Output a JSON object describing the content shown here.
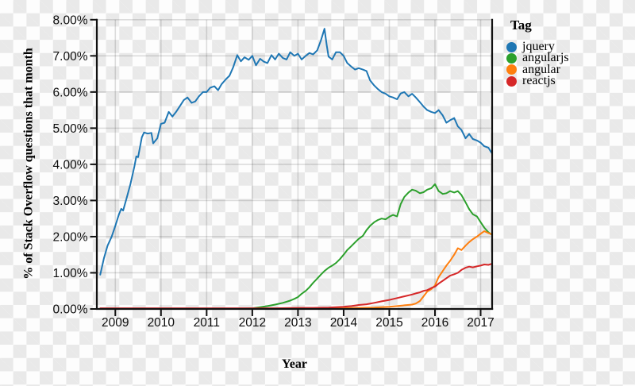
{
  "chart_data": {
    "type": "line",
    "title": "",
    "xlabel": "Year",
    "ylabel": "% of Stack Overflow questions that month",
    "x_domain": [
      2008.67,
      2017.25
    ],
    "y_domain": [
      0,
      8
    ],
    "x_ticks": [
      2009,
      2010,
      2011,
      2012,
      2013,
      2014,
      2015,
      2016,
      2017
    ],
    "y_ticks": [
      {
        "value": 8,
        "label": "8.00%"
      },
      {
        "value": 7,
        "label": "7.00%"
      },
      {
        "value": 6,
        "label": "6.00%"
      },
      {
        "value": 5,
        "label": "5.00%"
      },
      {
        "value": 4,
        "label": "4.00%"
      },
      {
        "value": 3,
        "label": "3.00%"
      },
      {
        "value": 2,
        "label": "2.00%"
      },
      {
        "value": 1,
        "label": "1.00%"
      },
      {
        "value": 0,
        "label": "0.00%"
      }
    ],
    "grid": true,
    "legend": {
      "title": "Tag",
      "position": "right",
      "items": [
        {
          "label": "jquery",
          "color": "#1f77b4"
        },
        {
          "label": "angularjs",
          "color": "#2ca02c"
        },
        {
          "label": "angular",
          "color": "#ff7f0e"
        },
        {
          "label": "reactjs",
          "color": "#d62728"
        }
      ]
    },
    "series": [
      {
        "name": "jquery",
        "color": "#1f77b4",
        "points": [
          [
            2008.67,
            0.95
          ],
          [
            2008.75,
            1.4
          ],
          [
            2008.83,
            1.75
          ],
          [
            2008.92,
            2.0
          ],
          [
            2009.0,
            2.3
          ],
          [
            2009.08,
            2.62
          ],
          [
            2009.13,
            2.77
          ],
          [
            2009.17,
            2.72
          ],
          [
            2009.25,
            3.08
          ],
          [
            2009.33,
            3.45
          ],
          [
            2009.42,
            3.95
          ],
          [
            2009.46,
            4.22
          ],
          [
            2009.5,
            4.2
          ],
          [
            2009.58,
            4.75
          ],
          [
            2009.63,
            4.88
          ],
          [
            2009.71,
            4.85
          ],
          [
            2009.79,
            4.87
          ],
          [
            2009.83,
            4.58
          ],
          [
            2009.92,
            4.72
          ],
          [
            2010.0,
            5.12
          ],
          [
            2010.08,
            5.15
          ],
          [
            2010.17,
            5.45
          ],
          [
            2010.25,
            5.32
          ],
          [
            2010.33,
            5.45
          ],
          [
            2010.42,
            5.62
          ],
          [
            2010.5,
            5.78
          ],
          [
            2010.58,
            5.85
          ],
          [
            2010.67,
            5.7
          ],
          [
            2010.75,
            5.74
          ],
          [
            2010.83,
            5.88
          ],
          [
            2010.92,
            6.0
          ],
          [
            2011.0,
            6.0
          ],
          [
            2011.08,
            6.12
          ],
          [
            2011.17,
            6.16
          ],
          [
            2011.25,
            6.05
          ],
          [
            2011.33,
            6.22
          ],
          [
            2011.42,
            6.35
          ],
          [
            2011.5,
            6.45
          ],
          [
            2011.58,
            6.68
          ],
          [
            2011.67,
            7.02
          ],
          [
            2011.75,
            6.85
          ],
          [
            2011.83,
            6.96
          ],
          [
            2011.92,
            6.89
          ],
          [
            2012.0,
            7.0
          ],
          [
            2012.08,
            6.74
          ],
          [
            2012.17,
            6.92
          ],
          [
            2012.25,
            6.84
          ],
          [
            2012.33,
            6.8
          ],
          [
            2012.42,
            7.02
          ],
          [
            2012.5,
            6.9
          ],
          [
            2012.58,
            7.06
          ],
          [
            2012.67,
            6.94
          ],
          [
            2012.75,
            6.9
          ],
          [
            2012.83,
            7.1
          ],
          [
            2012.92,
            7.0
          ],
          [
            2013.0,
            7.06
          ],
          [
            2013.08,
            6.9
          ],
          [
            2013.17,
            7.0
          ],
          [
            2013.25,
            7.08
          ],
          [
            2013.33,
            7.04
          ],
          [
            2013.42,
            7.15
          ],
          [
            2013.5,
            7.42
          ],
          [
            2013.58,
            7.75
          ],
          [
            2013.63,
            7.3
          ],
          [
            2013.67,
            6.98
          ],
          [
            2013.75,
            6.9
          ],
          [
            2013.83,
            7.1
          ],
          [
            2013.92,
            7.1
          ],
          [
            2014.0,
            7.0
          ],
          [
            2014.08,
            6.8
          ],
          [
            2014.17,
            6.7
          ],
          [
            2014.25,
            6.62
          ],
          [
            2014.33,
            6.66
          ],
          [
            2014.42,
            6.62
          ],
          [
            2014.5,
            6.58
          ],
          [
            2014.58,
            6.32
          ],
          [
            2014.67,
            6.18
          ],
          [
            2014.75,
            6.08
          ],
          [
            2014.83,
            6.0
          ],
          [
            2014.92,
            5.95
          ],
          [
            2015.0,
            5.88
          ],
          [
            2015.08,
            5.85
          ],
          [
            2015.17,
            5.8
          ],
          [
            2015.25,
            5.96
          ],
          [
            2015.33,
            6.0
          ],
          [
            2015.42,
            5.88
          ],
          [
            2015.5,
            5.95
          ],
          [
            2015.58,
            5.85
          ],
          [
            2015.67,
            5.72
          ],
          [
            2015.75,
            5.6
          ],
          [
            2015.83,
            5.5
          ],
          [
            2015.92,
            5.45
          ],
          [
            2016.0,
            5.42
          ],
          [
            2016.08,
            5.5
          ],
          [
            2016.17,
            5.35
          ],
          [
            2016.25,
            5.15
          ],
          [
            2016.33,
            5.22
          ],
          [
            2016.42,
            5.28
          ],
          [
            2016.5,
            5.05
          ],
          [
            2016.58,
            4.95
          ],
          [
            2016.67,
            4.72
          ],
          [
            2016.75,
            4.84
          ],
          [
            2016.83,
            4.7
          ],
          [
            2016.92,
            4.66
          ],
          [
            2017.0,
            4.6
          ],
          [
            2017.08,
            4.5
          ],
          [
            2017.17,
            4.46
          ],
          [
            2017.25,
            4.3
          ]
        ]
      },
      {
        "name": "angularjs",
        "color": "#2ca02c",
        "points": [
          [
            2008.67,
            0.0
          ],
          [
            2009.5,
            0.0
          ],
          [
            2010.5,
            0.0
          ],
          [
            2011.0,
            0.0
          ],
          [
            2011.5,
            0.0
          ],
          [
            2011.83,
            0.01
          ],
          [
            2012.0,
            0.02
          ],
          [
            2012.17,
            0.05
          ],
          [
            2012.33,
            0.08
          ],
          [
            2012.5,
            0.12
          ],
          [
            2012.67,
            0.17
          ],
          [
            2012.83,
            0.23
          ],
          [
            2012.92,
            0.28
          ],
          [
            2013.0,
            0.33
          ],
          [
            2013.08,
            0.42
          ],
          [
            2013.17,
            0.5
          ],
          [
            2013.25,
            0.6
          ],
          [
            2013.33,
            0.72
          ],
          [
            2013.42,
            0.84
          ],
          [
            2013.5,
            0.95
          ],
          [
            2013.58,
            1.05
          ],
          [
            2013.67,
            1.14
          ],
          [
            2013.75,
            1.2
          ],
          [
            2013.83,
            1.27
          ],
          [
            2013.92,
            1.38
          ],
          [
            2014.0,
            1.5
          ],
          [
            2014.08,
            1.63
          ],
          [
            2014.17,
            1.74
          ],
          [
            2014.25,
            1.84
          ],
          [
            2014.33,
            1.94
          ],
          [
            2014.42,
            2.02
          ],
          [
            2014.5,
            2.18
          ],
          [
            2014.58,
            2.3
          ],
          [
            2014.67,
            2.4
          ],
          [
            2014.75,
            2.46
          ],
          [
            2014.83,
            2.5
          ],
          [
            2014.92,
            2.48
          ],
          [
            2015.0,
            2.55
          ],
          [
            2015.08,
            2.6
          ],
          [
            2015.17,
            2.56
          ],
          [
            2015.25,
            2.9
          ],
          [
            2015.33,
            3.1
          ],
          [
            2015.42,
            3.22
          ],
          [
            2015.5,
            3.3
          ],
          [
            2015.58,
            3.27
          ],
          [
            2015.67,
            3.2
          ],
          [
            2015.75,
            3.23
          ],
          [
            2015.83,
            3.3
          ],
          [
            2015.92,
            3.34
          ],
          [
            2016.0,
            3.45
          ],
          [
            2016.08,
            3.26
          ],
          [
            2016.17,
            3.18
          ],
          [
            2016.25,
            3.2
          ],
          [
            2016.33,
            3.26
          ],
          [
            2016.42,
            3.22
          ],
          [
            2016.5,
            3.26
          ],
          [
            2016.58,
            3.15
          ],
          [
            2016.67,
            2.95
          ],
          [
            2016.75,
            2.76
          ],
          [
            2016.83,
            2.62
          ],
          [
            2016.92,
            2.56
          ],
          [
            2017.0,
            2.4
          ],
          [
            2017.08,
            2.25
          ],
          [
            2017.17,
            2.12
          ],
          [
            2017.25,
            2.05
          ]
        ]
      },
      {
        "name": "angular",
        "color": "#ff7f0e",
        "points": [
          [
            2008.67,
            0.0
          ],
          [
            2010.0,
            0.0
          ],
          [
            2012.0,
            0.0
          ],
          [
            2013.0,
            0.01
          ],
          [
            2013.5,
            0.01
          ],
          [
            2014.0,
            0.02
          ],
          [
            2014.33,
            0.03
          ],
          [
            2014.67,
            0.04
          ],
          [
            2015.0,
            0.06
          ],
          [
            2015.17,
            0.08
          ],
          [
            2015.33,
            0.1
          ],
          [
            2015.5,
            0.12
          ],
          [
            2015.58,
            0.15
          ],
          [
            2015.67,
            0.22
          ],
          [
            2015.75,
            0.35
          ],
          [
            2015.83,
            0.48
          ],
          [
            2015.92,
            0.55
          ],
          [
            2016.0,
            0.65
          ],
          [
            2016.08,
            0.88
          ],
          [
            2016.17,
            1.05
          ],
          [
            2016.25,
            1.2
          ],
          [
            2016.33,
            1.33
          ],
          [
            2016.42,
            1.5
          ],
          [
            2016.5,
            1.68
          ],
          [
            2016.58,
            1.63
          ],
          [
            2016.67,
            1.75
          ],
          [
            2016.75,
            1.85
          ],
          [
            2016.83,
            1.93
          ],
          [
            2016.92,
            2.0
          ],
          [
            2017.0,
            2.08
          ],
          [
            2017.08,
            2.15
          ],
          [
            2017.17,
            2.1
          ],
          [
            2017.25,
            2.06
          ]
        ]
      },
      {
        "name": "reactjs",
        "color": "#d62728",
        "points": [
          [
            2008.67,
            0.02
          ],
          [
            2009.5,
            0.02
          ],
          [
            2010.5,
            0.02
          ],
          [
            2011.5,
            0.02
          ],
          [
            2012.5,
            0.02
          ],
          [
            2013.0,
            0.03
          ],
          [
            2013.33,
            0.03
          ],
          [
            2013.67,
            0.04
          ],
          [
            2014.0,
            0.06
          ],
          [
            2014.17,
            0.08
          ],
          [
            2014.33,
            0.11
          ],
          [
            2014.5,
            0.13
          ],
          [
            2014.67,
            0.17
          ],
          [
            2014.83,
            0.21
          ],
          [
            2015.0,
            0.25
          ],
          [
            2015.17,
            0.3
          ],
          [
            2015.33,
            0.35
          ],
          [
            2015.5,
            0.4
          ],
          [
            2015.58,
            0.43
          ],
          [
            2015.67,
            0.46
          ],
          [
            2015.75,
            0.5
          ],
          [
            2015.83,
            0.52
          ],
          [
            2015.92,
            0.58
          ],
          [
            2016.0,
            0.62
          ],
          [
            2016.08,
            0.7
          ],
          [
            2016.17,
            0.78
          ],
          [
            2016.25,
            0.85
          ],
          [
            2016.33,
            0.92
          ],
          [
            2016.42,
            0.96
          ],
          [
            2016.5,
            1.0
          ],
          [
            2016.58,
            1.08
          ],
          [
            2016.67,
            1.14
          ],
          [
            2016.75,
            1.17
          ],
          [
            2016.83,
            1.15
          ],
          [
            2016.92,
            1.18
          ],
          [
            2017.0,
            1.2
          ],
          [
            2017.08,
            1.23
          ],
          [
            2017.17,
            1.22
          ],
          [
            2017.25,
            1.25
          ]
        ]
      }
    ]
  }
}
